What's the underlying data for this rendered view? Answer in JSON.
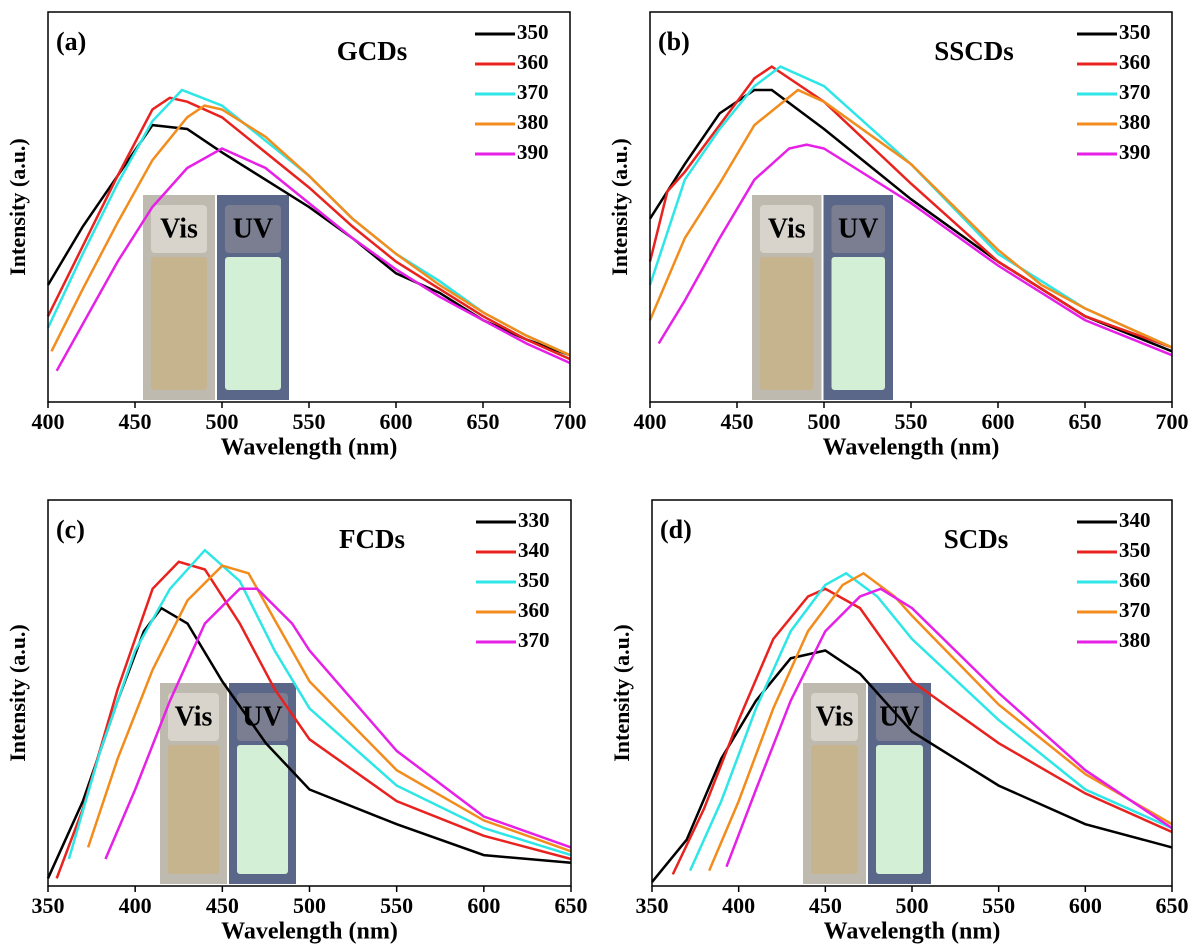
{
  "chart_data": [
    {
      "type": "line",
      "label": "(a)",
      "title": "GCDs",
      "xlabel": "Wavelength (nm)",
      "ylabel": "Intensity (a.u.)",
      "xlim": [
        400,
        700
      ],
      "xticks": [
        400,
        450,
        500,
        550,
        600,
        650,
        700
      ],
      "ylim": [
        0,
        100
      ],
      "legend": "upper right",
      "inset_labels": [
        "Vis",
        "UV"
      ],
      "series": [
        {
          "name": "350",
          "color": "#000000",
          "x": [
            400,
            420,
            440,
            460,
            480,
            500,
            525,
            550,
            575,
            600,
            625,
            650,
            675,
            700
          ],
          "values": [
            30,
            45,
            58,
            71,
            70,
            64,
            57,
            50,
            42,
            33,
            28,
            21,
            16,
            12
          ]
        },
        {
          "name": "360",
          "color": "#e8231f",
          "x": [
            400,
            420,
            440,
            460,
            470,
            480,
            500,
            525,
            550,
            575,
            600,
            625,
            650,
            675,
            700
          ],
          "values": [
            22,
            40,
            58,
            75,
            78,
            77,
            73,
            64,
            55,
            45,
            36,
            29,
            22,
            16,
            11
          ]
        },
        {
          "name": "370",
          "color": "#2ee6e6",
          "x": [
            400,
            420,
            440,
            460,
            477,
            500,
            525,
            550,
            575,
            600,
            625,
            650,
            675,
            700
          ],
          "values": [
            19,
            38,
            56,
            72,
            80,
            76,
            67,
            58,
            47,
            38,
            31,
            23,
            17,
            12
          ]
        },
        {
          "name": "380",
          "color": "#f28c1c",
          "x": [
            402,
            420,
            440,
            460,
            480,
            490,
            500,
            525,
            550,
            575,
            600,
            625,
            650,
            675,
            700
          ],
          "values": [
            13,
            29,
            46,
            62,
            73,
            76,
            75,
            68,
            58,
            47,
            38,
            30,
            23,
            17,
            12
          ]
        },
        {
          "name": "390",
          "color": "#e620e6",
          "x": [
            405,
            420,
            440,
            460,
            480,
            500,
            525,
            550,
            575,
            600,
            625,
            650,
            675,
            700
          ],
          "values": [
            8,
            20,
            36,
            50,
            60,
            65,
            60,
            51,
            42,
            34,
            27,
            21,
            15,
            10
          ]
        }
      ]
    },
    {
      "type": "line",
      "label": "(b)",
      "title": "SSCDs",
      "xlabel": "Wavelength (nm)",
      "ylabel": "Intensity (a.u.)",
      "xlim": [
        400,
        700
      ],
      "xticks": [
        400,
        450,
        500,
        550,
        600,
        650,
        700
      ],
      "ylim": [
        0,
        100
      ],
      "legend": "upper right",
      "inset_labels": [
        "Vis",
        "UV"
      ],
      "series": [
        {
          "name": "350",
          "color": "#000000",
          "x": [
            400,
            420,
            440,
            460,
            470,
            500,
            550,
            600,
            650,
            700
          ],
          "values": [
            47,
            61,
            74,
            80,
            80,
            70,
            52,
            36,
            22,
            13
          ]
        },
        {
          "name": "360",
          "color": "#e8231f",
          "x": [
            400,
            410,
            420,
            440,
            460,
            470,
            500,
            550,
            600,
            650,
            700
          ],
          "values": [
            36,
            54,
            59,
            71,
            83,
            86,
            77,
            56,
            36,
            22,
            14
          ]
        },
        {
          "name": "370",
          "color": "#2ee6e6",
          "x": [
            400,
            420,
            440,
            460,
            475,
            500,
            550,
            600,
            650,
            700
          ],
          "values": [
            30,
            57,
            70,
            81,
            86,
            81,
            61,
            38,
            24,
            14
          ]
        },
        {
          "name": "380",
          "color": "#f28c1c",
          "x": [
            400,
            420,
            440,
            460,
            485,
            500,
            550,
            600,
            625,
            650,
            700
          ],
          "values": [
            21,
            42,
            56,
            71,
            80,
            77,
            61,
            39,
            30,
            24,
            14
          ]
        },
        {
          "name": "390",
          "color": "#e620e6",
          "x": [
            405,
            420,
            440,
            460,
            480,
            490,
            500,
            550,
            600,
            650,
            700
          ],
          "values": [
            15,
            26,
            42,
            57,
            65,
            66,
            65,
            51,
            35,
            21,
            12
          ]
        }
      ]
    },
    {
      "type": "line",
      "label": "(c)",
      "title": "FCDs",
      "xlabel": "Wavelength (nm)",
      "ylabel": "Intensity (a.u.)",
      "xlim": [
        350,
        650
      ],
      "xticks": [
        350,
        400,
        450,
        500,
        550,
        600,
        650
      ],
      "ylim": [
        0,
        100
      ],
      "legend": "upper right",
      "inset_labels": [
        "Vis",
        "UV"
      ],
      "series": [
        {
          "name": "330",
          "color": "#000000",
          "x": [
            350,
            370,
            390,
            405,
            415,
            430,
            450,
            475,
            500,
            550,
            600,
            650
          ],
          "values": [
            2,
            22,
            48,
            66,
            72,
            68,
            53,
            37,
            25,
            16,
            8,
            6
          ]
        },
        {
          "name": "340",
          "color": "#e8231f",
          "x": [
            355,
            370,
            390,
            410,
            425,
            440,
            460,
            480,
            500,
            550,
            600,
            650
          ],
          "values": [
            2,
            20,
            51,
            77,
            84,
            82,
            68,
            51,
            38,
            22,
            13,
            7
          ]
        },
        {
          "name": "350",
          "color": "#2ee6e6",
          "x": [
            362,
            380,
            400,
            420,
            440,
            460,
            480,
            500,
            550,
            600,
            650
          ],
          "values": [
            7,
            35,
            61,
            77,
            87,
            79,
            61,
            46,
            26,
            15,
            8
          ]
        },
        {
          "name": "360",
          "color": "#f28c1c",
          "x": [
            373,
            390,
            410,
            430,
            450,
            465,
            480,
            500,
            550,
            600,
            650
          ],
          "values": [
            10,
            33,
            56,
            74,
            83,
            81,
            69,
            53,
            30,
            17,
            9
          ]
        },
        {
          "name": "370",
          "color": "#e620e6",
          "x": [
            383,
            400,
            420,
            440,
            460,
            470,
            490,
            500,
            550,
            600,
            650
          ],
          "values": [
            7,
            25,
            48,
            68,
            77,
            77,
            68,
            61,
            35,
            18,
            10
          ]
        }
      ]
    },
    {
      "type": "line",
      "label": "(d)",
      "title": "SCDs",
      "xlabel": "Wavelength (nm)",
      "ylabel": "Intensity (a.u.)",
      "xlim": [
        350,
        650
      ],
      "xticks": [
        350,
        400,
        450,
        500,
        550,
        600,
        650
      ],
      "ylim": [
        0,
        100
      ],
      "legend": "upper right",
      "inset_labels": [
        "Vis",
        "UV"
      ],
      "series": [
        {
          "name": "340",
          "color": "#000000",
          "x": [
            350,
            370,
            390,
            410,
            430,
            450,
            470,
            500,
            550,
            600,
            650
          ],
          "values": [
            1,
            12,
            33,
            48,
            59,
            61,
            55,
            40,
            26,
            16,
            10
          ]
        },
        {
          "name": "350",
          "color": "#e8231f",
          "x": [
            362,
            380,
            400,
            420,
            440,
            450,
            470,
            500,
            550,
            600,
            650
          ],
          "values": [
            3,
            20,
            43,
            64,
            75,
            77,
            72,
            53,
            37,
            24,
            14
          ]
        },
        {
          "name": "360",
          "color": "#2ee6e6",
          "x": [
            372,
            390,
            410,
            430,
            450,
            462,
            480,
            500,
            550,
            600,
            650
          ],
          "values": [
            4,
            22,
            46,
            66,
            78,
            81,
            75,
            64,
            43,
            25,
            15
          ]
        },
        {
          "name": "370",
          "color": "#f28c1c",
          "x": [
            383,
            400,
            420,
            440,
            460,
            472,
            490,
            500,
            550,
            600,
            650
          ],
          "values": [
            4,
            22,
            46,
            66,
            78,
            81,
            75,
            70,
            47,
            29,
            16
          ]
        },
        {
          "name": "380",
          "color": "#e620e6",
          "x": [
            393,
            410,
            430,
            450,
            470,
            482,
            500,
            550,
            600,
            650
          ],
          "values": [
            5,
            25,
            48,
            66,
            75,
            77,
            72,
            50,
            30,
            15
          ]
        }
      ]
    }
  ]
}
